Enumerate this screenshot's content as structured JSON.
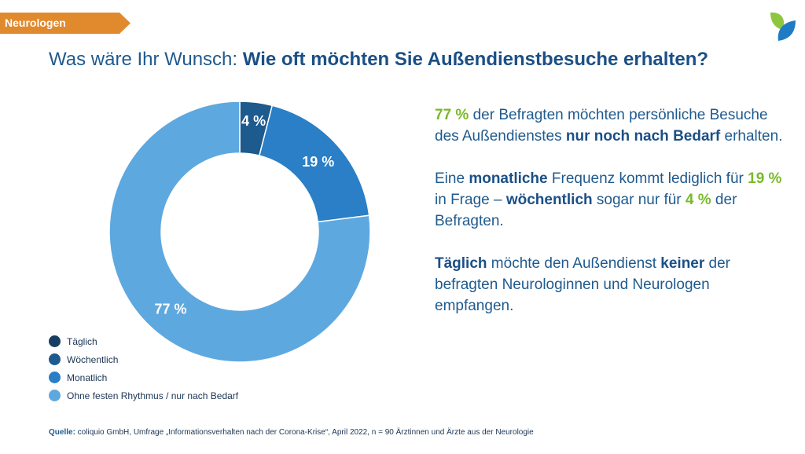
{
  "header": {
    "tag_label": "Neurologen",
    "headline_lead": "Was wäre Ihr Wunsch: ",
    "headline_bold": "Wie oft möchten Sie Außendienstbesuche erhalten?"
  },
  "colors": {
    "tag_orange": "#e08a2d",
    "headline_blue": "#1b4f86",
    "highlight_green": "#7ab929",
    "logo_green": "#8dc63f",
    "logo_blue": "#1e7cc4"
  },
  "chart_data": {
    "type": "pie",
    "style": "donut",
    "categories": [
      "Täglich",
      "Wöchentlich",
      "Monatlich",
      "Ohne festen Rhythmus / nur nach Bedarf"
    ],
    "values": [
      0,
      4,
      19,
      77
    ],
    "labels": [
      "",
      "4 %",
      "19 %",
      "77 %"
    ],
    "colors": [
      "#173e63",
      "#1d5a8e",
      "#2a7fc6",
      "#5ea8e0"
    ],
    "legend_position": "bottom-left"
  },
  "paragraphs": {
    "p1": {
      "s1": "77 %",
      "s2": " der Befragten möchten persönliche Besuche des Außendienstes ",
      "s3": "nur noch nach Bedarf",
      "s4": " erhalten."
    },
    "p2": {
      "s1": "Eine ",
      "s2": "monatliche",
      "s3": " Frequenz kommt lediglich für ",
      "s4": "19 %",
      "s5": " in Frage – ",
      "s6": "wöchentlich",
      "s7": " sogar nur für ",
      "s8": "4 %",
      "s9": " der Befragten."
    },
    "p3": {
      "s1": "Täglich",
      "s2": " möchte den Außendienst ",
      "s3": "keiner",
      "s4": " der befragten Neurologinnen und Neurologen empfangen."
    }
  },
  "source": {
    "label": "Quelle:",
    "text": " coliquio GmbH, Umfrage „Informationsverhalten nach der Corona-Krise“, April 2022, n = 90 Ärztinnen und Ärzte aus der Neurologie"
  }
}
